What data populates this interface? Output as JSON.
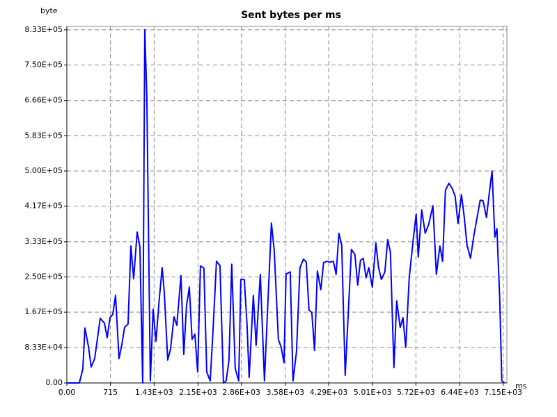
{
  "chart_data": {
    "type": "line",
    "title": "Sent bytes per ms",
    "x_label": "ms",
    "y_label": "byte",
    "x": [
      0,
      205,
      262,
      296,
      353,
      399,
      456,
      547,
      616,
      661,
      707,
      753,
      798,
      855,
      901,
      946,
      1003,
      1049,
      1095,
      1152,
      1197,
      1243,
      1277,
      1311,
      1368,
      1414,
      1460,
      1517,
      1562,
      1596,
      1653,
      1699,
      1756,
      1802,
      1870,
      1916,
      1961,
      2007,
      2052,
      2098,
      2144,
      2189,
      2246,
      2292,
      2349,
      2395,
      2452,
      2509,
      2566,
      2611,
      2657,
      2702,
      2759,
      2816,
      2851,
      2908,
      2953,
      2987,
      3056,
      3101,
      3170,
      3238,
      3284,
      3352,
      3398,
      3466,
      3512,
      3558,
      3592,
      3660,
      3706,
      3763,
      3820,
      3877,
      3923,
      3968,
      4014,
      4059,
      4105,
      4162,
      4207,
      4264,
      4310,
      4367,
      4412,
      4458,
      4504,
      4561,
      4606,
      4663,
      4720,
      4766,
      4811,
      4857,
      4903,
      4948,
      5005,
      5063,
      5108,
      5154,
      5211,
      5257,
      5302,
      5359,
      5405,
      5462,
      5507,
      5553,
      5610,
      5678,
      5724,
      5758,
      5815,
      5872,
      5929,
      5998,
      6055,
      6112,
      6157,
      6203,
      6260,
      6317,
      6363,
      6409,
      6466,
      6511,
      6557,
      6614,
      6671,
      6728,
      6773,
      6819,
      6876,
      6922,
      6967,
      7013,
      7047,
      7093,
      7127,
      7173
    ],
    "series": [
      {
        "name": "Sent bytes",
        "color": "#0000ff",
        "values": [
          0,
          0,
          32800,
          129600,
          87000,
          37700,
          57400,
          152500,
          141000,
          106600,
          154000,
          162000,
          206600,
          57400,
          90200,
          131000,
          139000,
          323000,
          246000,
          356000,
          321000,
          0,
          833000,
          674000,
          4900,
          174000,
          98000,
          202000,
          272000,
          215000,
          54000,
          80000,
          156000,
          136000,
          253000,
          67000,
          182000,
          226000,
          103000,
          115000,
          26000,
          276000,
          271000,
          26000,
          4900,
          123000,
          287000,
          277000,
          0,
          4900,
          54000,
          280000,
          34000,
          4900,
          244000,
          244000,
          136000,
          13000,
          206600,
          88600,
          256000,
          4900,
          156000,
          377000,
          313000,
          103000,
          84000,
          47600,
          257000,
          262000,
          4900,
          74000,
          272000,
          292000,
          285000,
          172000,
          166000,
          77000,
          264000,
          220000,
          284000,
          287000,
          285000,
          287000,
          256000,
          353000,
          325000,
          18000,
          149000,
          315000,
          303000,
          231000,
          289000,
          294000,
          248000,
          272000,
          226000,
          330000,
          272000,
          244000,
          262000,
          338000,
          308000,
          36000,
          193500,
          131000,
          154000,
          84000,
          248000,
          341000,
          398500,
          297000,
          408000,
          353000,
          374000,
          418000,
          256000,
          323000,
          287000,
          454000,
          471000,
          458000,
          440000,
          376000,
          444000,
          392000,
          325000,
          294000,
          349000,
          395000,
          431000,
          430000,
          390000,
          448000,
          500000,
          344000,
          364000,
          198000,
          4900,
          0
        ]
      }
    ],
    "xlim": [
      0,
      7210
    ],
    "ylim": [
      0,
      841000
    ],
    "xticks": [
      {
        "value": 0,
        "label": "0.00"
      },
      715,
      {
        "value": 1430,
        "label": "1.43E+03"
      },
      {
        "value": 2150,
        "label": "2.15E+03"
      },
      {
        "value": 2860,
        "label": "2.86E+03"
      },
      {
        "value": 3580,
        "label": "3.58E+03"
      },
      {
        "value": 4290,
        "label": "4.29E+03"
      },
      {
        "value": 5010,
        "label": "5.01E+03"
      },
      {
        "value": 5720,
        "label": "5.72E+03"
      },
      {
        "value": 6440,
        "label": "6.44E+03"
      },
      {
        "value": 7150,
        "label": "7.15E+03"
      }
    ],
    "yticks": [
      {
        "value": 0,
        "label": "0.00"
      },
      {
        "value": 83300,
        "label": "8.33E+04"
      },
      {
        "value": 167000,
        "label": "1.67E+05"
      },
      {
        "value": 250000,
        "label": "2.50E+05"
      },
      {
        "value": 333000,
        "label": "3.33E+05"
      },
      {
        "value": 417000,
        "label": "4.17E+05"
      },
      {
        "value": 500000,
        "label": "5.00E+05"
      },
      {
        "value": 583000,
        "label": "5.83E+05"
      },
      {
        "value": 666000,
        "label": "6.66E+05"
      },
      {
        "value": 750000,
        "label": "7.50E+05"
      },
      {
        "value": 833000,
        "label": "8.33E+05"
      }
    ],
    "grid": true
  }
}
